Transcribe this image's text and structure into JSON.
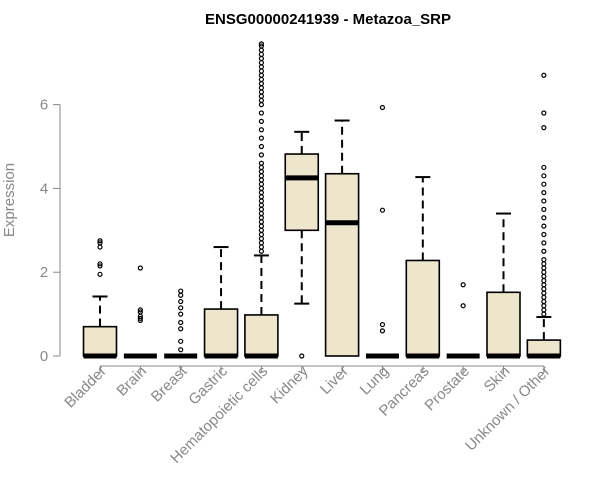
{
  "chart_data": {
    "type": "boxplot",
    "title": "ENSG00000241939 - Metazoa_SRP",
    "xlabel": "",
    "ylabel": "Expression",
    "ylim": [
      0,
      7.5
    ],
    "yticks": [
      0,
      2,
      4,
      6
    ],
    "grid": false,
    "box_fill": "#ede6cc",
    "categories": [
      "Bladder",
      "Brain",
      "Breast",
      "Gastric",
      "Hematopoietic cells",
      "Kidney",
      "Liver",
      "Lung",
      "Pancreas",
      "Prostate",
      "Skin",
      "Unknown / Other"
    ],
    "boxes": [
      {
        "name": "Bladder",
        "lower_whisker": 0,
        "q1": 0,
        "median": 0,
        "q3": 0.7,
        "upper_whisker": 1.42,
        "outliers": [
          1.95,
          2.15,
          2.2,
          2.6,
          2.7,
          2.75
        ]
      },
      {
        "name": "Brain",
        "lower_whisker": 0,
        "q1": 0,
        "median": 0,
        "q3": 0,
        "upper_whisker": 0,
        "outliers": [
          0.85,
          0.9,
          0.95,
          1.05,
          1.1,
          2.1
        ]
      },
      {
        "name": "Breast",
        "lower_whisker": 0,
        "q1": 0,
        "median": 0,
        "q3": 0,
        "upper_whisker": 0,
        "outliers": [
          0.15,
          0.35,
          0.65,
          0.8,
          1.0,
          1.15,
          1.3,
          1.45,
          1.55
        ]
      },
      {
        "name": "Gastric",
        "lower_whisker": 0,
        "q1": 0,
        "median": 0,
        "q3": 1.12,
        "upper_whisker": 2.6,
        "outliers": []
      },
      {
        "name": "Hematopoietic cells",
        "lower_whisker": 0,
        "q1": 0,
        "median": 0,
        "q3": 0.98,
        "upper_whisker": 2.4,
        "outliers": [
          2.5,
          2.6,
          2.7,
          2.8,
          2.9,
          3.0,
          3.1,
          3.2,
          3.3,
          3.4,
          3.5,
          3.6,
          3.7,
          3.8,
          3.9,
          4.0,
          4.1,
          4.2,
          4.3,
          4.4,
          4.5,
          4.6,
          4.8,
          5.0,
          5.2,
          5.4,
          5.6,
          5.8,
          6.0,
          6.1,
          6.2,
          6.3,
          6.4,
          6.5,
          6.6,
          6.7,
          6.8,
          6.9,
          7.0,
          7.1,
          7.2,
          7.3,
          7.4,
          7.45
        ]
      },
      {
        "name": "Kidney",
        "lower_whisker": 1.25,
        "q1": 3.0,
        "median": 4.25,
        "q3": 4.82,
        "upper_whisker": 5.35,
        "outliers": [
          0
        ]
      },
      {
        "name": "Liver",
        "lower_whisker": 0,
        "q1": 0,
        "median": 3.18,
        "q3": 4.35,
        "upper_whisker": 5.62,
        "outliers": []
      },
      {
        "name": "Lung",
        "lower_whisker": 0,
        "q1": 0,
        "median": 0,
        "q3": 0,
        "upper_whisker": 0,
        "outliers": [
          0.6,
          0.75,
          3.48,
          5.93
        ]
      },
      {
        "name": "Pancreas",
        "lower_whisker": 0,
        "q1": 0,
        "median": 0,
        "q3": 2.28,
        "upper_whisker": 4.27,
        "outliers": []
      },
      {
        "name": "Prostate",
        "lower_whisker": 0,
        "q1": 0,
        "median": 0,
        "q3": 0,
        "upper_whisker": 0,
        "outliers": [
          1.2,
          1.7
        ]
      },
      {
        "name": "Skin",
        "lower_whisker": 0,
        "q1": 0,
        "median": 0,
        "q3": 1.52,
        "upper_whisker": 3.4,
        "outliers": []
      },
      {
        "name": "Unknown / Other",
        "lower_whisker": 0,
        "q1": 0,
        "median": 0,
        "q3": 0.38,
        "upper_whisker": 0.93,
        "outliers": [
          1.0,
          1.1,
          1.2,
          1.3,
          1.4,
          1.5,
          1.6,
          1.7,
          1.8,
          1.9,
          2.0,
          2.1,
          2.2,
          2.3,
          2.5,
          2.7,
          2.9,
          3.1,
          3.3,
          3.5,
          3.7,
          3.9,
          4.1,
          4.3,
          4.5,
          5.45,
          5.8,
          6.7
        ]
      }
    ]
  }
}
